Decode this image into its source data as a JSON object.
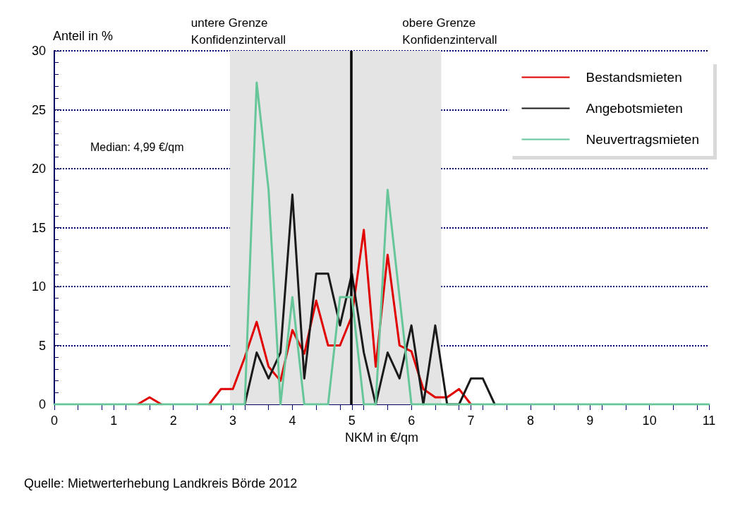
{
  "chart_data": {
    "type": "line",
    "xlabel": "NKM in €/qm",
    "ylabel": "Anteil in %",
    "x": [
      0,
      0.2,
      0.4,
      0.6,
      0.8,
      1,
      1.2,
      1.4,
      1.6,
      1.8,
      2,
      2.2,
      2.4,
      2.6,
      2.8,
      3,
      3.2,
      3.4,
      3.6,
      3.8,
      4,
      4.2,
      4.4,
      4.6,
      4.8,
      5,
      5.2,
      5.4,
      5.6,
      5.8,
      6,
      6.2,
      6.4,
      6.6,
      6.8,
      7,
      7.2,
      7.4,
      7.6,
      7.8,
      8,
      8.2,
      8.4,
      8.6,
      8.8,
      9,
      9.2,
      9.4,
      9.6,
      9.8,
      10,
      10.2,
      10.4,
      10.6,
      10.8,
      11
    ],
    "series": [
      {
        "name": "Bestandsmieten",
        "color": "#e00000",
        "values": [
          null,
          null,
          null,
          null,
          null,
          null,
          null,
          0,
          0.6,
          0,
          null,
          null,
          null,
          0,
          1.3,
          1.3,
          4,
          7,
          3.2,
          2,
          6.3,
          4.3,
          8.8,
          5,
          5,
          7.5,
          14.8,
          3.2,
          12.7,
          5,
          4.5,
          1.3,
          0.6,
          0.6,
          1.3,
          0,
          null,
          null,
          null,
          null,
          null,
          null,
          null,
          null,
          null,
          null,
          null,
          null,
          null,
          null,
          null,
          null,
          null,
          null,
          null,
          null
        ]
      },
      {
        "name": "Angebotsmieten",
        "color": "#1a1a1a",
        "values": [
          null,
          null,
          null,
          null,
          null,
          null,
          null,
          null,
          null,
          null,
          null,
          null,
          null,
          null,
          null,
          null,
          0,
          4.4,
          2.2,
          4.4,
          17.8,
          2.2,
          11.1,
          11.1,
          6.7,
          11.1,
          4.4,
          0,
          4.4,
          2.2,
          6.7,
          0,
          6.7,
          0,
          0,
          2.2,
          2.2,
          0,
          null,
          null,
          null,
          null,
          null,
          null,
          null,
          null,
          null,
          null,
          null,
          null,
          null,
          null,
          null,
          null,
          null,
          null
        ]
      },
      {
        "name": "Neuvertragsmieten",
        "color": "#66c699",
        "values": [
          0,
          0,
          0,
          0,
          0,
          0,
          0,
          0,
          0,
          0,
          0,
          0,
          0,
          0,
          0,
          0,
          0,
          27.3,
          18.2,
          0,
          9.1,
          0,
          0,
          0,
          9.1,
          9.1,
          0,
          0,
          18.2,
          9.1,
          0,
          0,
          0,
          0,
          0,
          0,
          0,
          0,
          0,
          0,
          0,
          0,
          0,
          0,
          0,
          0,
          0,
          0,
          0,
          0,
          0,
          0,
          0,
          0,
          0,
          0
        ]
      }
    ],
    "xlim": [
      0,
      11
    ],
    "xticks": [
      0,
      1,
      2,
      3,
      4,
      5,
      6,
      7,
      8,
      9,
      10,
      11
    ],
    "ylim": [
      0,
      30
    ],
    "yticks": [
      0,
      5,
      10,
      15,
      20,
      25,
      30
    ],
    "grid": "y",
    "legend": "top right",
    "marker": "none",
    "line_style": "solid",
    "ref_lines": [
      {
        "axis": "x",
        "value": 4.99,
        "color": "#000000"
      }
    ],
    "bands": [
      {
        "axis": "x",
        "from": 2.95,
        "to": 6.5,
        "color": "#e4e4e4"
      }
    ],
    "annotations": [
      "untere Grenze\nKonfidenzintervall",
      "obere Grenze\nKonfidenzintervall",
      "Median: 4,99 €/qm",
      "Quelle: Mietwerterhebung Landkreis Börde 2012"
    ]
  }
}
